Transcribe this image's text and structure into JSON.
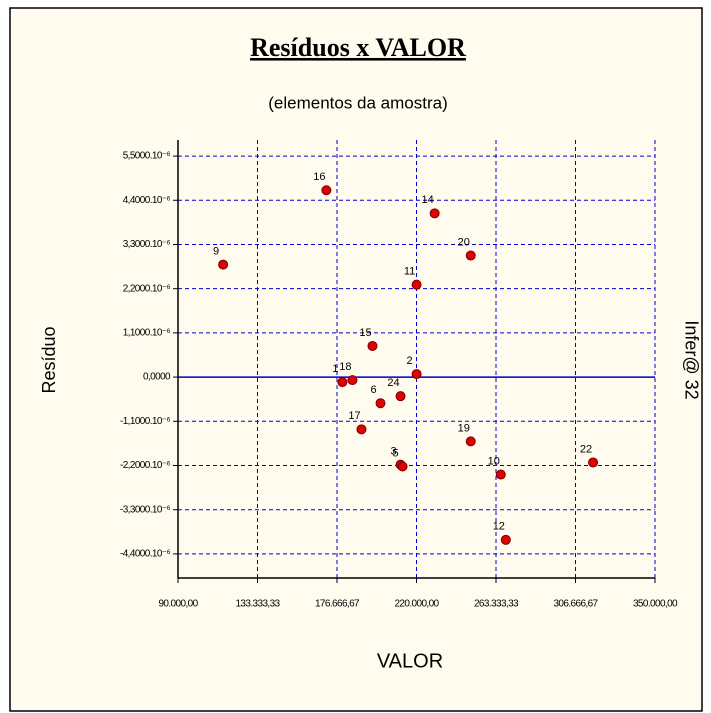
{
  "chart_data": {
    "type": "scatter",
    "title": "Resíduos x VALOR",
    "subtitle": "(elementos da amostra)",
    "xlabel": "VALOR",
    "ylabel": "Resíduo",
    "right_label": "Infer@ 32",
    "xlim": [
      90000,
      350000
    ],
    "ylim": [
      -5e-06,
      5.9e-06
    ],
    "xticks": [
      {
        "value": 90000,
        "label": "90.000,00"
      },
      {
        "value": 133333.33,
        "label": "133.333,33"
      },
      {
        "value": 176666.67,
        "label": "176.666,67"
      },
      {
        "value": 220000,
        "label": "220.000,00"
      },
      {
        "value": 263333.33,
        "label": "263.333,33"
      },
      {
        "value": 306666.67,
        "label": "306.666,67"
      },
      {
        "value": 350000,
        "label": "350.000,00"
      }
    ],
    "yticks": [
      {
        "value": 5.5e-06,
        "label": "5,5000.10⁻⁶"
      },
      {
        "value": 4.4e-06,
        "label": "4,4000.10⁻⁶"
      },
      {
        "value": 3.3e-06,
        "label": "3,3000.10⁻⁶"
      },
      {
        "value": 2.2e-06,
        "label": "2,2000.10⁻⁶"
      },
      {
        "value": 1.1e-06,
        "label": "1,1000.10⁻⁶"
      },
      {
        "value": 0,
        "label": "0,0000"
      },
      {
        "value": -1.1e-06,
        "label": "-1,1000.10⁻⁶"
      },
      {
        "value": -2.2e-06,
        "label": "-2,2000.10⁻⁶"
      },
      {
        "value": -3.3e-06,
        "label": "-3,3000.10⁻⁶"
      },
      {
        "value": -4.4e-06,
        "label": "-4,4000.10⁻⁶"
      }
    ],
    "grid": true,
    "zero_line": true,
    "color": "#e00000",
    "grid_color": "#0000cc",
    "series": [
      {
        "labels": [
          "9",
          "16",
          "14",
          "20",
          "11",
          "15",
          "2",
          "1",
          "18",
          "24",
          "6",
          "17",
          "3",
          "5",
          "19",
          "10",
          "12",
          "22"
        ],
        "x": [
          114590,
          170875,
          229890,
          249560,
          220050,
          196010,
          220050,
          179620,
          185080,
          211310,
          200380,
          190000,
          211300,
          212400,
          249560,
          265950,
          268690,
          316230
        ],
        "values": [
          2.8e-06,
          4.65e-06,
          4.075e-06,
          3.025e-06,
          2.3e-06,
          7.75e-07,
          7.5e-08,
          -1.25e-07,
          -7.5e-08,
          -4.75e-07,
          -6.5e-07,
          -1.3e-06,
          -2.18e-06,
          -2.225e-06,
          -1.6e-06,
          -2.425e-06,
          -4.05e-06,
          -2.125e-06
        ]
      }
    ]
  }
}
